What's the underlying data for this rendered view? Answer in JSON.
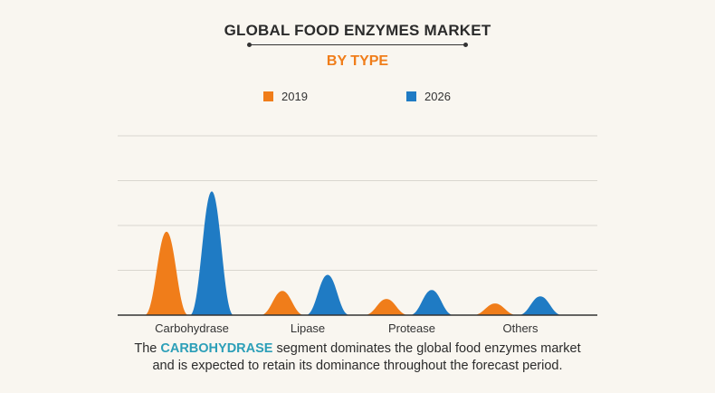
{
  "title": "GLOBAL FOOD ENZYMES MARKET",
  "subtitle": "BY TYPE",
  "footer": {
    "prefix": "The ",
    "highlight": "CARBOHYDRASE",
    "line1_rest": " segment dominates the global food enzymes market",
    "line2": "and is expected to retain its dominance throughout the forecast period."
  },
  "colors": {
    "series_2019": "#f07d1a",
    "series_2026": "#1f7bc4",
    "highlight": "#2c9fb8",
    "grid": "#d9d6cf"
  },
  "chart_data": {
    "type": "area",
    "title": "GLOBAL FOOD ENZYMES MARKET",
    "subtitle": "BY TYPE",
    "categories": [
      "Carbohydrase",
      "Lipase",
      "Protease",
      "Others"
    ],
    "series": [
      {
        "name": "2019",
        "values": [
          93,
          27,
          18,
          13
        ]
      },
      {
        "name": "2026",
        "values": [
          138,
          45,
          28,
          21
        ]
      }
    ],
    "ylim": [
      0,
      200
    ],
    "grid": true,
    "legend": "top-center",
    "xlabel": "",
    "ylabel": ""
  }
}
